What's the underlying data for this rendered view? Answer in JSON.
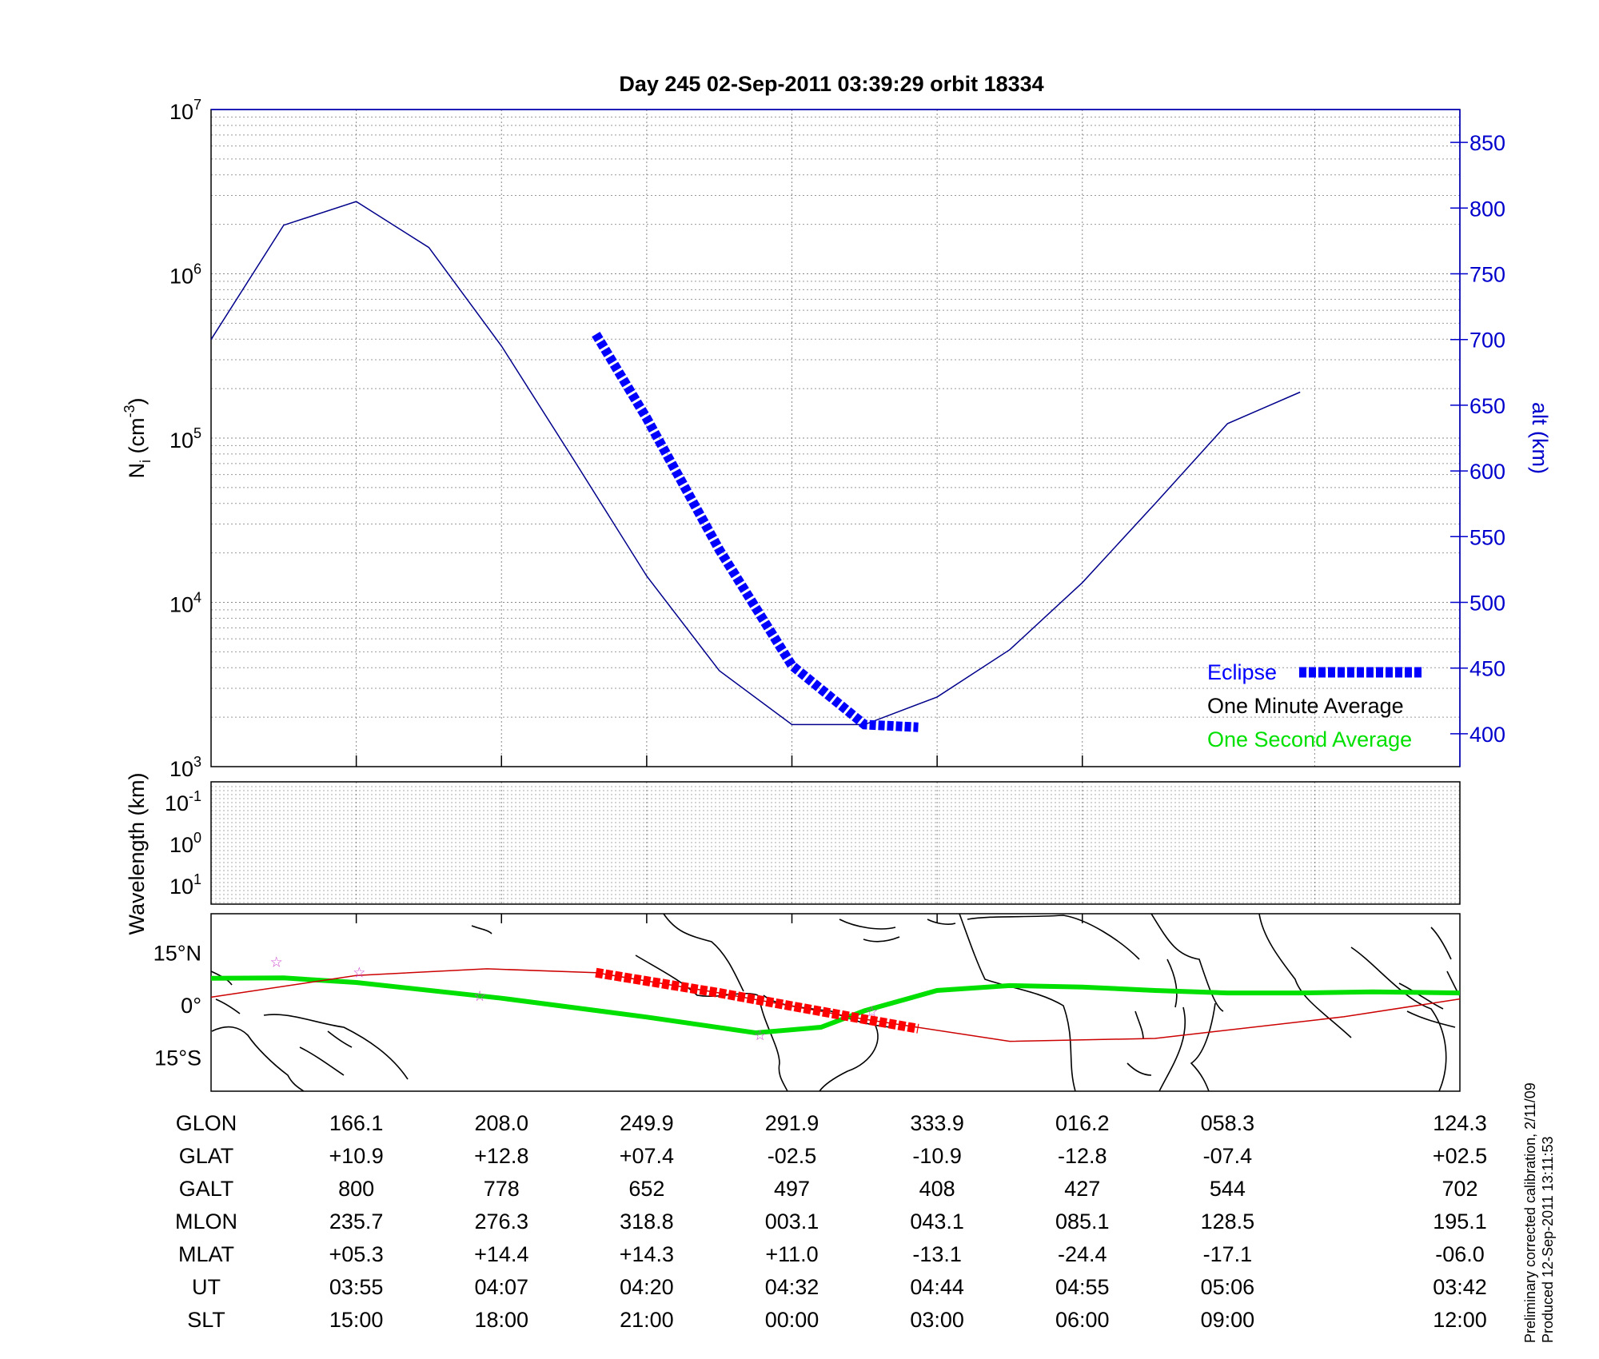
{
  "title": "Day 245  02-Sep-2011 03:39:29   orbit 18334",
  "chart_data": [
    {
      "type": "line",
      "title": "Day 245  02-Sep-2011 03:39:29   orbit 18334",
      "ylabel": "N_i (cm^-3)",
      "y2label": "alt (km)",
      "y_scale": "log",
      "ylim": [
        1000,
        10000000
      ],
      "y_ticks": [
        {
          "base": "10",
          "exp": "3"
        },
        {
          "base": "10",
          "exp": "4"
        },
        {
          "base": "10",
          "exp": "5"
        },
        {
          "base": "10",
          "exp": "6"
        },
        {
          "base": "10",
          "exp": "7"
        }
      ],
      "y2lim": [
        375,
        875
      ],
      "y2_ticks": [
        "400",
        "450",
        "500",
        "550",
        "600",
        "650",
        "700",
        "750",
        "800",
        "850"
      ],
      "x_label_rows": [
        "GLON",
        "GLAT",
        "GALT",
        "MLON",
        "MLAT",
        "UT",
        "SLT"
      ],
      "grid": true,
      "legend_position": "bottom-right",
      "legend": [
        {
          "label": "Eclipse",
          "color": "#0000ff"
        },
        {
          "label": "One Minute Average",
          "color": "#000000"
        },
        {
          "label": "One Second Average",
          "color": "#00e000"
        }
      ],
      "series": [
        {
          "name": "alt (km)",
          "color": "#00008b",
          "x": [
            0,
            0.5,
            1,
            1.5,
            2,
            2.5,
            3,
            3.5,
            4,
            4.5,
            5,
            5.5,
            6,
            6.5,
            7,
            7.5,
            7.9,
            8.6
          ],
          "y": [
            700,
            787,
            805,
            770,
            695,
            608,
            520,
            448,
            407,
            407,
            428,
            464,
            515,
            575,
            636,
            660,
            null,
            700
          ]
        },
        {
          "name": "Eclipse",
          "color": "#0000ff",
          "x": [
            2.65,
            3.0,
            3.5,
            4.0,
            4.5,
            4.87
          ],
          "y": [
            704,
            640,
            540,
            452,
            407,
            405
          ]
        }
      ]
    },
    {
      "type": "line",
      "ylabel": "Wavelength (km)",
      "y_ticks": [
        {
          "base": "10",
          "exp": "-1"
        },
        {
          "base": "10",
          "exp": "0"
        },
        {
          "base": "10",
          "exp": "1"
        }
      ],
      "grid": true,
      "series": []
    },
    {
      "type": "line",
      "y_ticks": [
        "15°N",
        "0°",
        "15°S"
      ],
      "ylim": [
        -20,
        20
      ],
      "series": [
        {
          "name": "One Second Average",
          "color": "#00e000",
          "x": [
            0,
            0.5,
            1,
            2,
            3,
            3.75,
            4.2,
            4.5,
            5,
            5.5,
            6,
            6.5,
            7,
            7.5,
            8,
            8.6
          ],
          "y": [
            7.6,
            7.7,
            6.4,
            1.9,
            -3.5,
            -8.0,
            -6.4,
            -1.7,
            4.1,
            5.5,
            5.1,
            4.1,
            3.4,
            3.4,
            3.7,
            3.4
          ]
        },
        {
          "name": "ground track",
          "color": "#cc0000",
          "x": [
            0,
            1,
            1.9,
            2.65,
            3.5,
            4.5,
            5.5,
            6.5,
            7.8,
            8.6
          ],
          "y": [
            2.2,
            8.4,
            10.3,
            9.2,
            3.4,
            -4.1,
            -10.4,
            -9.6,
            -3.4,
            1.7
          ]
        },
        {
          "name": "Eclipse",
          "color": "#ff0000",
          "x": [
            2.65,
            3.5,
            4.5,
            4.87
          ],
          "y": [
            9.2,
            3.4,
            -4.1,
            -6.8
          ]
        }
      ]
    }
  ],
  "table": {
    "labels": [
      "GLON",
      "GLAT",
      "GALT",
      "MLON",
      "MLAT",
      "UT",
      "SLT"
    ],
    "columns": [
      [
        "166.1",
        "+10.9",
        "800",
        "235.7",
        "+05.3",
        "03:55",
        "15:00"
      ],
      [
        "208.0",
        "+12.8",
        "778",
        "276.3",
        "+14.4",
        "04:07",
        "18:00"
      ],
      [
        "249.9",
        "+07.4",
        "652",
        "318.8",
        "+14.3",
        "04:20",
        "21:00"
      ],
      [
        "291.9",
        "-02.5",
        "497",
        "003.1",
        "+11.0",
        "04:32",
        "00:00"
      ],
      [
        "333.9",
        "-10.9",
        "408",
        "043.1",
        "-13.1",
        "04:44",
        "03:00"
      ],
      [
        "016.2",
        "-12.8",
        "427",
        "085.1",
        "-24.4",
        "04:55",
        "06:00"
      ],
      [
        "058.3",
        "-07.4",
        "544",
        "128.5",
        "-17.1",
        "05:06",
        "09:00"
      ],
      [
        "124.3",
        "+02.5",
        "702",
        "195.1",
        "-06.0",
        "03:42",
        "12:00"
      ]
    ]
  },
  "side_notes": [
    "Preliminary corrected calibration, 2/11/09",
    "Produced 12-Sep-2011 13:11:53"
  ],
  "colors": {
    "altitude_line": "#00008b",
    "eclipse_blue": "#0000ff",
    "eclipse_red": "#ff0000",
    "ground_track": "#cc0000",
    "one_second": "#00e000",
    "star_markers": "#cc44cc",
    "axis_right": "#0000cc"
  }
}
